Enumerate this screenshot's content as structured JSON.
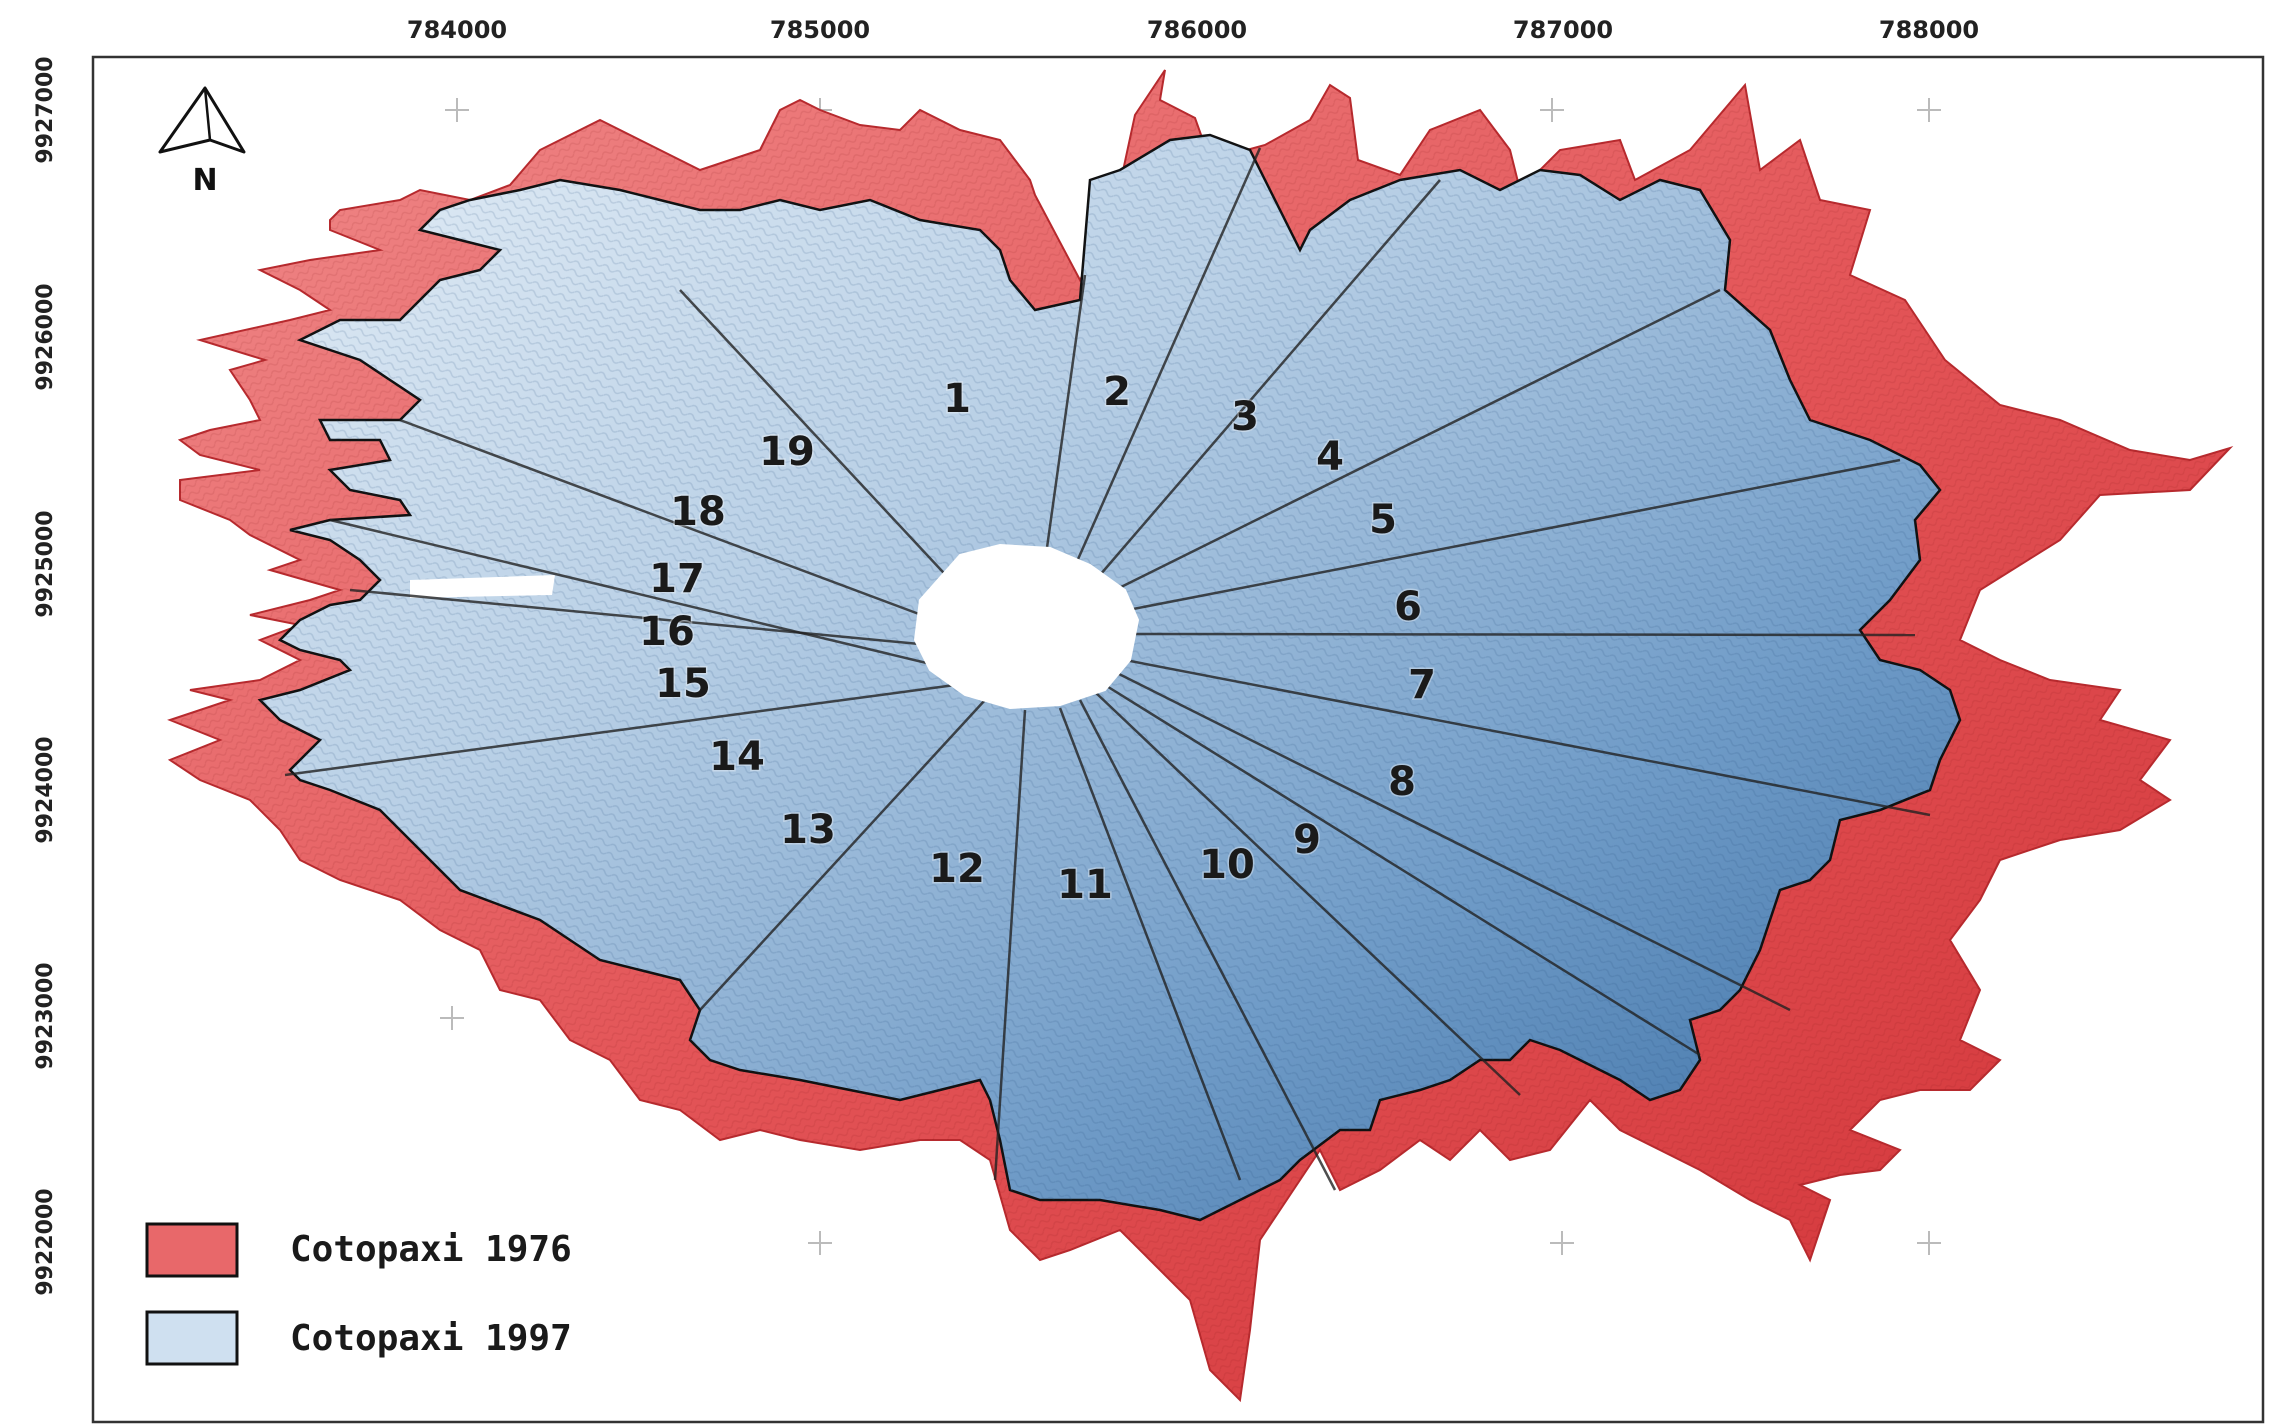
{
  "map": {
    "x_ticks": [
      "784000",
      "785000",
      "786000",
      "787000",
      "788000"
    ],
    "y_ticks": [
      "9927000",
      "9926000",
      "9925000",
      "9924000",
      "9923000",
      "9922000"
    ],
    "north_label": "N",
    "sector_labels": [
      "1",
      "2",
      "3",
      "4",
      "5",
      "6",
      "7",
      "8",
      "9",
      "10",
      "11",
      "12",
      "13",
      "14",
      "15",
      "16",
      "17",
      "18",
      "19"
    ],
    "legend": [
      {
        "label": "Cotopaxi 1976",
        "color": "#e8686a"
      },
      {
        "label": "Cotopaxi 1997",
        "color": "#cfe0f0"
      }
    ],
    "colors": {
      "glacier_1976": "#e8686a",
      "glacier_1976_dark": "#d63a3d",
      "glacier_1997_light": "#d8e6f2",
      "glacier_1997_dark": "#3f74aa",
      "crater": "#ffffff"
    }
  }
}
